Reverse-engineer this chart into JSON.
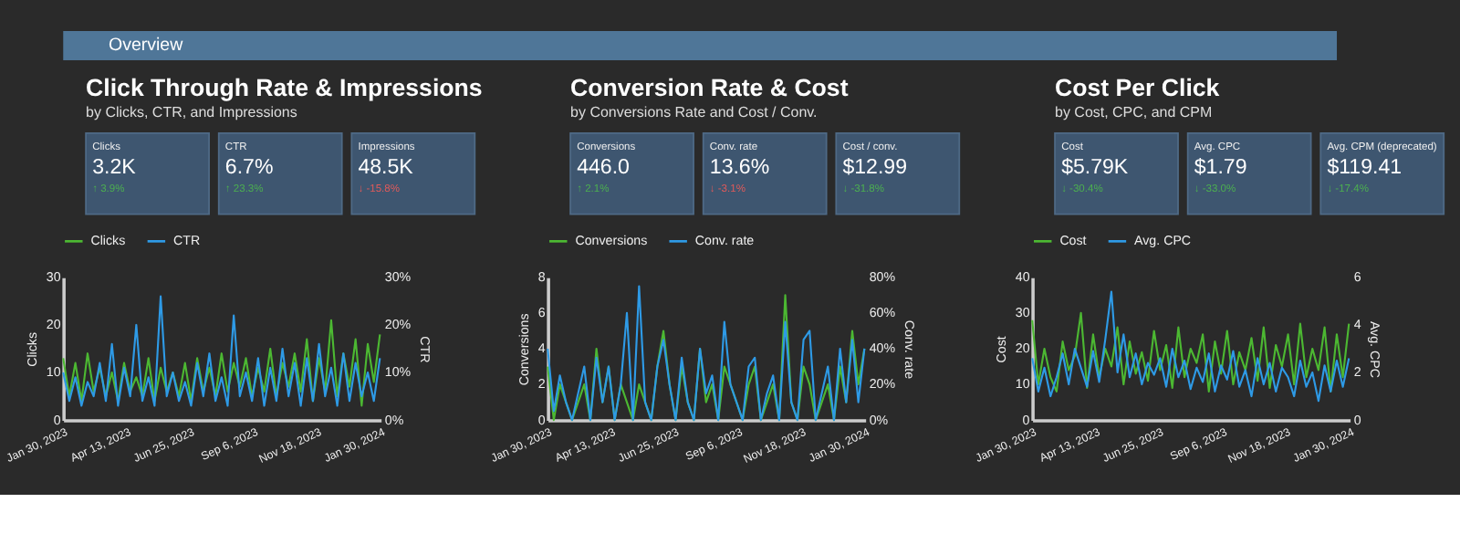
{
  "chart_data": [
    {
      "type": "other",
      "title": "Overview"
    },
    {
      "type": "other",
      "title": "Click Through Rate & Impressions",
      "subtitle": "by Clicks, CTR, and Impressions",
      "annotations": [
        "Clicks",
        "3.2K",
        "↑ 3.9%",
        "CTR",
        "6.7%",
        "↑ 23.3%",
        "Impressions",
        "48.5K",
        "↓ -15.8%"
      ],
      "colors": [
        "#4caf50",
        "#4caf50",
        "#e05a5a"
      ]
    },
    {
      "type": "line",
      "x": [
        "2023-01-30",
        "2023-02-06",
        "2023-02-13",
        "2023-02-20",
        "2023-02-27",
        "2023-03-06",
        "2023-03-13",
        "2023-03-20",
        "2023-03-27",
        "2023-04-03",
        "2023-04-10",
        "2023-04-17",
        "2023-04-24",
        "2023-05-01",
        "2023-05-08",
        "2023-05-15",
        "2023-05-22",
        "2023-05-29",
        "2023-06-05",
        "2023-06-12",
        "2023-06-19",
        "2023-06-26",
        "2023-07-03",
        "2023-07-10",
        "2023-07-17",
        "2023-07-24",
        "2023-07-31",
        "2023-08-07",
        "2023-08-14",
        "2023-08-21",
        "2023-08-28",
        "2023-09-04",
        "2023-09-11",
        "2023-09-18",
        "2023-09-25",
        "2023-10-02",
        "2023-10-09",
        "2023-10-16",
        "2023-10-23",
        "2023-10-30",
        "2023-11-06",
        "2023-11-13",
        "2023-11-20",
        "2023-11-27",
        "2023-12-04",
        "2023-12-11",
        "2023-12-18",
        "2023-12-25",
        "2024-01-01",
        "2024-01-08",
        "2024-01-15",
        "2024-01-22",
        "2024-01-29"
      ],
      "series": [
        {
          "name": "Clicks",
          "color": "#4cb832",
          "values": [
            13,
            5,
            12,
            4,
            14,
            6,
            11,
            5,
            10,
            4,
            12,
            6,
            9,
            5,
            13,
            4,
            11,
            6,
            10,
            5,
            12,
            4,
            13,
            6,
            11,
            5,
            14,
            6,
            12,
            7,
            13,
            5,
            11,
            6,
            15,
            5,
            12,
            7,
            14,
            6,
            17,
            4,
            13,
            6,
            21,
            5,
            14,
            7,
            17,
            3,
            16,
            8,
            18
          ]
        },
        {
          "name": "CTR",
          "color": "#2e9ae6",
          "axis": "y2",
          "values": [
            10,
            4,
            9,
            3,
            8,
            5,
            12,
            4,
            16,
            3,
            11,
            5,
            20,
            4,
            9,
            3,
            26,
            5,
            10,
            4,
            8,
            3,
            12,
            5,
            14,
            4,
            9,
            3,
            22,
            5,
            10,
            4,
            13,
            3,
            11,
            4,
            15,
            5,
            12,
            3,
            13,
            4,
            16,
            5,
            11,
            3,
            14,
            4,
            12,
            5,
            10,
            4,
            13
          ]
        }
      ],
      "xlim": [
        "2023-01-30",
        "2024-01-30"
      ],
      "xticks": [
        {
          "value": "2023-01-30",
          "label": "Jan 30, 2023"
        },
        {
          "value": "2023-04-13",
          "label": "Apr 13, 2023"
        },
        {
          "value": "2023-06-25",
          "label": "Jun 25, 2023"
        },
        {
          "value": "2023-09-06",
          "label": "Sep 6, 2023"
        },
        {
          "value": "2023-11-18",
          "label": "Nov 18, 2023"
        },
        {
          "value": "2024-01-30",
          "label": "Jan 30, 2024"
        }
      ],
      "ylim": [
        0,
        30
      ],
      "yticks": [
        0,
        10,
        20,
        30
      ],
      "ylabel": "Clicks",
      "y2lim": [
        0,
        30
      ],
      "y2ticks": [
        {
          "value": 0,
          "label": "0%"
        },
        {
          "value": 10,
          "label": "10%"
        },
        {
          "value": 20,
          "label": "20%"
        },
        {
          "value": 30,
          "label": "30%"
        }
      ],
      "y2label": "CTR",
      "legend": "top"
    },
    {
      "type": "other",
      "title": "Conversion Rate & Cost",
      "subtitle": "by Conversions Rate and Cost / Conv.",
      "annotations": [
        "Conversions",
        "446.0",
        "↑ 2.1%",
        "Conv. rate",
        "13.6%",
        "↓ -3.1%",
        "Cost / conv.",
        "$12.99",
        "↓ -31.8%"
      ],
      "colors": [
        "#4caf50",
        "#e05a5a",
        "#4caf50"
      ]
    },
    {
      "type": "line",
      "x": [
        "2023-01-30",
        "2023-02-06",
        "2023-02-13",
        "2023-02-20",
        "2023-02-27",
        "2023-03-06",
        "2023-03-13",
        "2023-03-20",
        "2023-03-27",
        "2023-04-03",
        "2023-04-10",
        "2023-04-17",
        "2023-04-24",
        "2023-05-01",
        "2023-05-08",
        "2023-05-15",
        "2023-05-22",
        "2023-05-29",
        "2023-06-05",
        "2023-06-12",
        "2023-06-19",
        "2023-06-26",
        "2023-07-03",
        "2023-07-10",
        "2023-07-17",
        "2023-07-24",
        "2023-07-31",
        "2023-08-07",
        "2023-08-14",
        "2023-08-21",
        "2023-08-28",
        "2023-09-04",
        "2023-09-11",
        "2023-09-18",
        "2023-09-25",
        "2023-10-02",
        "2023-10-09",
        "2023-10-16",
        "2023-10-23",
        "2023-10-30",
        "2023-11-06",
        "2023-11-13",
        "2023-11-20",
        "2023-11-27",
        "2023-12-04",
        "2023-12-11",
        "2023-12-18",
        "2023-12-25",
        "2024-01-01",
        "2024-01-08",
        "2024-01-15",
        "2024-01-22",
        "2024-01-29"
      ],
      "series": [
        {
          "name": "Conversions",
          "color": "#4cb832",
          "values": [
            3,
            0,
            2,
            1,
            0,
            1,
            2,
            0,
            4,
            1,
            3,
            0,
            2,
            1,
            0,
            2,
            1,
            0,
            3,
            5,
            2,
            0,
            3,
            1,
            0,
            4,
            1,
            2,
            0,
            3,
            2,
            1,
            0,
            2,
            3,
            0,
            1,
            2,
            0,
            7,
            1,
            0,
            3,
            2,
            0,
            1,
            2,
            0,
            3,
            1,
            5,
            2,
            4
          ]
        },
        {
          "name": "Conv. rate",
          "color": "#2e9ae6",
          "axis": "y2",
          "values": [
            40,
            5,
            25,
            10,
            0,
            15,
            30,
            0,
            35,
            10,
            30,
            0,
            20,
            60,
            0,
            75,
            10,
            0,
            30,
            45,
            20,
            0,
            35,
            10,
            0,
            40,
            15,
            25,
            0,
            55,
            20,
            10,
            0,
            30,
            35,
            0,
            15,
            25,
            0,
            55,
            10,
            0,
            45,
            50,
            0,
            15,
            30,
            0,
            40,
            10,
            45,
            10,
            40
          ]
        }
      ],
      "xlim": [
        "2023-01-30",
        "2024-01-30"
      ],
      "xticks": [
        {
          "value": "2023-01-30",
          "label": "Jan 30, 2023"
        },
        {
          "value": "2023-04-13",
          "label": "Apr 13, 2023"
        },
        {
          "value": "2023-06-25",
          "label": "Jun 25, 2023"
        },
        {
          "value": "2023-09-06",
          "label": "Sep 6, 2023"
        },
        {
          "value": "2023-11-18",
          "label": "Nov 18, 2023"
        },
        {
          "value": "2024-01-30",
          "label": "Jan 30, 2024"
        }
      ],
      "ylim": [
        0,
        8
      ],
      "yticks": [
        0,
        2,
        4,
        6,
        8
      ],
      "ylabel": "Conversions",
      "y2lim": [
        0,
        80
      ],
      "y2ticks": [
        {
          "value": 0,
          "label": "0%"
        },
        {
          "value": 20,
          "label": "20%"
        },
        {
          "value": 40,
          "label": "40%"
        },
        {
          "value": 60,
          "label": "60%"
        },
        {
          "value": 80,
          "label": "80%"
        }
      ],
      "y2label": "Conv. rate",
      "legend": "top"
    },
    {
      "type": "other",
      "title": "Cost Per Click",
      "subtitle": "by Cost, CPC, and CPM",
      "annotations": [
        "Cost",
        "$5.79K",
        "↓ -30.4%",
        "Avg. CPC",
        "$1.79",
        "↓ -33.0%",
        "Avg. CPM (deprecated)",
        "$119.41",
        "↓ -17.4%"
      ],
      "colors": [
        "#4caf50",
        "#4caf50",
        "#4caf50"
      ]
    },
    {
      "type": "line",
      "x": [
        "2023-01-30",
        "2023-02-06",
        "2023-02-13",
        "2023-02-20",
        "2023-02-27",
        "2023-03-06",
        "2023-03-13",
        "2023-03-20",
        "2023-03-27",
        "2023-04-03",
        "2023-04-10",
        "2023-04-17",
        "2023-04-24",
        "2023-05-01",
        "2023-05-08",
        "2023-05-15",
        "2023-05-22",
        "2023-05-29",
        "2023-06-05",
        "2023-06-12",
        "2023-06-19",
        "2023-06-26",
        "2023-07-03",
        "2023-07-10",
        "2023-07-17",
        "2023-07-24",
        "2023-07-31",
        "2023-08-07",
        "2023-08-14",
        "2023-08-21",
        "2023-08-28",
        "2023-09-04",
        "2023-09-11",
        "2023-09-18",
        "2023-09-25",
        "2023-10-02",
        "2023-10-09",
        "2023-10-16",
        "2023-10-23",
        "2023-10-30",
        "2023-11-06",
        "2023-11-13",
        "2023-11-20",
        "2023-11-27",
        "2023-12-04",
        "2023-12-11",
        "2023-12-18",
        "2023-12-25",
        "2024-01-01",
        "2024-01-08",
        "2024-01-15",
        "2024-01-22",
        "2024-01-29"
      ],
      "series": [
        {
          "name": "Cost",
          "color": "#4cb832",
          "values": [
            28,
            10,
            20,
            12,
            8,
            22,
            14,
            18,
            30,
            9,
            24,
            12,
            20,
            15,
            26,
            10,
            22,
            13,
            19,
            11,
            25,
            14,
            21,
            9,
            26,
            12,
            20,
            16,
            24,
            8,
            22,
            13,
            25,
            10,
            19,
            14,
            23,
            11,
            26,
            9,
            21,
            15,
            24,
            10,
            27,
            12,
            20,
            14,
            26,
            8,
            24,
            12,
            27
          ]
        },
        {
          "name": "Avg. CPC",
          "color": "#2e9ae6",
          "axis": "y2",
          "values": [
            2.6,
            1.2,
            2.2,
            1.0,
            1.8,
            2.8,
            1.5,
            3.0,
            2.2,
            1.4,
            2.9,
            1.6,
            3.4,
            5.4,
            2.0,
            3.6,
            1.8,
            2.8,
            1.5,
            2.4,
            1.9,
            2.6,
            1.4,
            3.0,
            1.8,
            2.5,
            1.3,
            2.2,
            1.6,
            2.8,
            1.2,
            2.3,
            1.7,
            2.9,
            1.4,
            2.1,
            1.0,
            2.6,
            1.5,
            2.4,
            1.2,
            2.2,
            1.8,
            1.0,
            2.5,
            1.4,
            2.0,
            0.8,
            2.3,
            1.2,
            2.5,
            1.4,
            2.6
          ]
        }
      ],
      "xlim": [
        "2023-01-30",
        "2024-01-30"
      ],
      "xticks": [
        {
          "value": "2023-01-30",
          "label": "Jan 30, 2023"
        },
        {
          "value": "2023-04-13",
          "label": "Apr 13, 2023"
        },
        {
          "value": "2023-06-25",
          "label": "Jun 25, 2023"
        },
        {
          "value": "2023-09-06",
          "label": "Sep 6, 2023"
        },
        {
          "value": "2023-11-18",
          "label": "Nov 18, 2023"
        },
        {
          "value": "2024-01-30",
          "label": "Jan 30, 2024"
        }
      ],
      "ylim": [
        0,
        40
      ],
      "yticks": [
        0,
        10,
        20,
        30,
        40
      ],
      "ylabel": "Cost",
      "y2lim": [
        0,
        6
      ],
      "y2ticks": [
        0,
        2,
        4,
        6
      ],
      "y2label": "Avg. CPC",
      "legend": "top"
    }
  ]
}
